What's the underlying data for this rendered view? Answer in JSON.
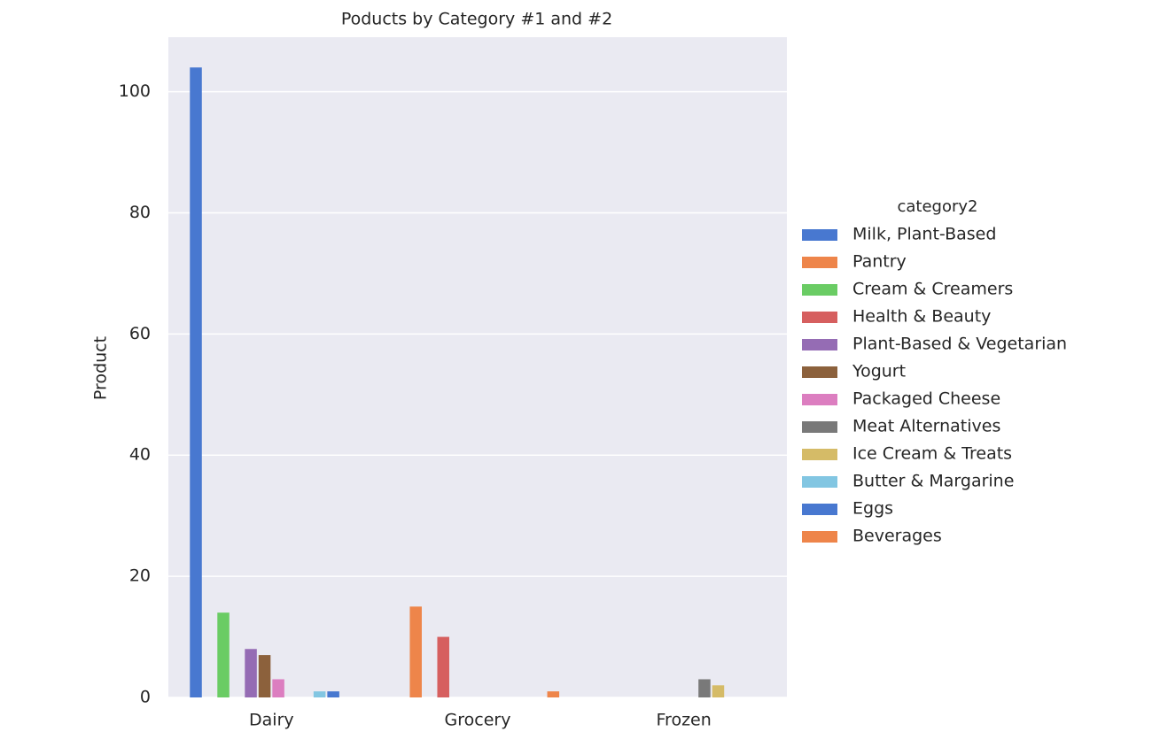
{
  "chart_data": {
    "type": "bar",
    "title": "Poducts by Category #1 and #2",
    "y_label": "Product",
    "categories": [
      "Dairy",
      "Grocery",
      "Frozen"
    ],
    "legend_title": "category2",
    "series": [
      {
        "name": "Milk, Plant-Based",
        "color": "#4878d0",
        "values": [
          104,
          null,
          null
        ]
      },
      {
        "name": "Pantry",
        "color": "#ee854a",
        "values": [
          null,
          15,
          null
        ]
      },
      {
        "name": "Cream & Creamers",
        "color": "#6acc64",
        "values": [
          14,
          null,
          null
        ]
      },
      {
        "name": "Health & Beauty",
        "color": "#d65f5f",
        "values": [
          null,
          10,
          null
        ]
      },
      {
        "name": "Plant-Based & Vegetarian",
        "color": "#956cb4",
        "values": [
          8,
          null,
          null
        ]
      },
      {
        "name": "Yogurt",
        "color": "#8c613c",
        "values": [
          7,
          null,
          null
        ]
      },
      {
        "name": "Packaged Cheese",
        "color": "#dc7ec0",
        "values": [
          3,
          null,
          null
        ]
      },
      {
        "name": "Meat Alternatives",
        "color": "#797979",
        "values": [
          null,
          null,
          3
        ]
      },
      {
        "name": "Ice Cream & Treats",
        "color": "#d5bb67",
        "values": [
          null,
          null,
          2
        ]
      },
      {
        "name": "Butter & Margarine",
        "color": "#82c6e2",
        "values": [
          1,
          null,
          null
        ]
      },
      {
        "name": "Eggs",
        "color": "#4878d0",
        "values": [
          1,
          null,
          null
        ]
      },
      {
        "name": "Beverages",
        "color": "#ee854a",
        "values": [
          null,
          1,
          null
        ]
      }
    ],
    "ylim": [
      0,
      109
    ],
    "yticks": [
      0,
      20,
      40,
      60,
      80,
      100
    ],
    "grid": true,
    "legend": "right"
  }
}
